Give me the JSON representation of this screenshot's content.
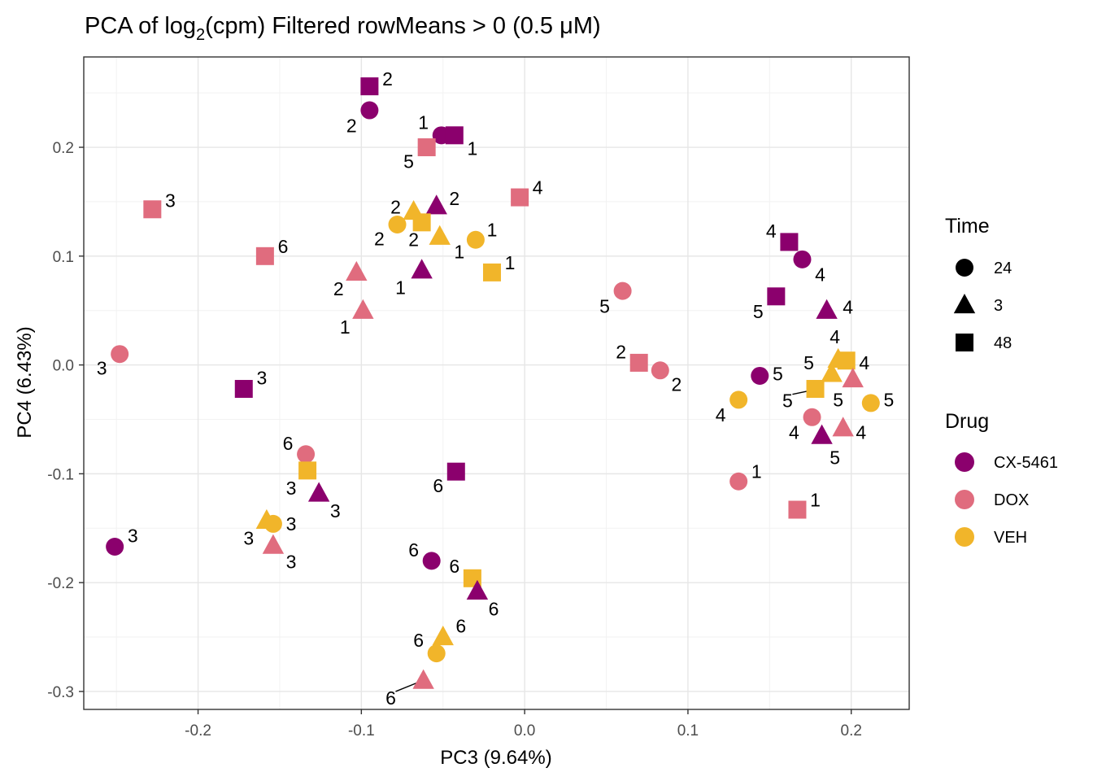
{
  "chart_data": {
    "type": "scatter",
    "title": {
      "prefix": "PCA of log",
      "subscript": "2",
      "suffix": "(cpm) Filtered rowMeans > 0 (0.5 μM)"
    },
    "xlabel": "PC3 (9.64%)",
    "ylabel": "PC4 (6.43%)",
    "xlim": [
      -0.27,
      0.2355
    ],
    "ylim": [
      -0.3165,
      0.283
    ],
    "xticks": [
      -0.2,
      -0.1,
      0.0,
      0.1,
      0.2
    ],
    "xtick_labels": [
      "-0.2",
      "-0.1",
      "0.0",
      "0.1",
      "0.2"
    ],
    "yticks": [
      -0.3,
      -0.2,
      -0.1,
      0.0,
      0.1,
      0.2
    ],
    "ytick_labels": [
      "-0.3",
      "-0.2",
      "-0.1",
      "0.0",
      "0.1",
      "0.2"
    ],
    "grid": true,
    "legend_time": {
      "title": "Time",
      "entries": [
        {
          "label": "24",
          "shape": "circle"
        },
        {
          "label": "3",
          "shape": "triangle"
        },
        {
          "label": "48",
          "shape": "square"
        }
      ]
    },
    "legend_drug": {
      "title": "Drug",
      "entries": [
        {
          "label": "CX-5461",
          "color": "#8B006D"
        },
        {
          "label": "DOX",
          "color": "#E06C7E"
        },
        {
          "label": "VEH",
          "color": "#F1B52A"
        }
      ]
    },
    "colors": {
      "CX-5461": "#8B006D",
      "DOX": "#E06C7E",
      "VEH": "#F1B52A"
    },
    "points": [
      {
        "x": -0.095,
        "y": 0.256,
        "drug": "CX-5461",
        "time": "48",
        "label": "2",
        "ldx": 0.011,
        "ldy": 0.007
      },
      {
        "x": -0.095,
        "y": 0.234,
        "drug": "CX-5461",
        "time": "24",
        "label": "2",
        "ldx": -0.011,
        "ldy": -0.014
      },
      {
        "x": -0.051,
        "y": 0.211,
        "drug": "CX-5461",
        "time": "24",
        "label": "1",
        "ldx": -0.011,
        "ldy": 0.012
      },
      {
        "x": -0.043,
        "y": 0.211,
        "drug": "CX-5461",
        "time": "48",
        "label": "1",
        "ldx": 0.011,
        "ldy": -0.012
      },
      {
        "x": -0.06,
        "y": 0.2,
        "drug": "DOX",
        "time": "48",
        "label": "5",
        "ldx": -0.011,
        "ldy": -0.013
      },
      {
        "x": -0.228,
        "y": 0.143,
        "drug": "DOX",
        "time": "48",
        "label": "3",
        "ldx": 0.011,
        "ldy": 0.008
      },
      {
        "x": -0.003,
        "y": 0.154,
        "drug": "DOX",
        "time": "48",
        "label": "4",
        "ldx": 0.011,
        "ldy": 0.009
      },
      {
        "x": -0.054,
        "y": 0.146,
        "drug": "CX-5461",
        "time": "3",
        "label": "2",
        "ldx": 0.011,
        "ldy": 0.007
      },
      {
        "x": -0.068,
        "y": 0.141,
        "drug": "VEH",
        "time": "3",
        "label": "2",
        "ldx": -0.011,
        "ldy": 0.004
      },
      {
        "x": -0.063,
        "y": 0.131,
        "drug": "VEH",
        "time": "48",
        "label": "2",
        "ldx": -0.005,
        "ldy": -0.016
      },
      {
        "x": -0.078,
        "y": 0.129,
        "drug": "VEH",
        "time": "24",
        "label": "2",
        "ldx": -0.011,
        "ldy": -0.013
      },
      {
        "x": -0.052,
        "y": 0.118,
        "drug": "VEH",
        "time": "3",
        "label": "1",
        "ldx": 0.012,
        "ldy": -0.014
      },
      {
        "x": -0.03,
        "y": 0.115,
        "drug": "VEH",
        "time": "24",
        "label": "1",
        "ldx": 0.01,
        "ldy": 0.009
      },
      {
        "x": -0.02,
        "y": 0.085,
        "drug": "VEH",
        "time": "48",
        "label": "1",
        "ldx": 0.011,
        "ldy": 0.009
      },
      {
        "x": -0.159,
        "y": 0.1,
        "drug": "DOX",
        "time": "48",
        "label": "6",
        "ldx": 0.011,
        "ldy": 0.009
      },
      {
        "x": -0.103,
        "y": 0.085,
        "drug": "DOX",
        "time": "3",
        "label": "2",
        "ldx": -0.011,
        "ldy": -0.015
      },
      {
        "x": -0.063,
        "y": 0.087,
        "drug": "CX-5461",
        "time": "3",
        "label": "1",
        "ldx": -0.013,
        "ldy": -0.016
      },
      {
        "x": -0.099,
        "y": 0.05,
        "drug": "DOX",
        "time": "3",
        "label": "1",
        "ldx": -0.011,
        "ldy": -0.015
      },
      {
        "x": -0.248,
        "y": 0.01,
        "drug": "DOX",
        "time": "24",
        "label": "3",
        "ldx": -0.011,
        "ldy": -0.013
      },
      {
        "x": -0.172,
        "y": -0.022,
        "drug": "CX-5461",
        "time": "48",
        "label": "3",
        "ldx": 0.011,
        "ldy": 0.01
      },
      {
        "x": 0.06,
        "y": 0.068,
        "drug": "DOX",
        "time": "24",
        "label": "5",
        "ldx": -0.011,
        "ldy": -0.014
      },
      {
        "x": 0.07,
        "y": 0.002,
        "drug": "DOX",
        "time": "48",
        "label": "2",
        "ldx": -0.011,
        "ldy": 0.01
      },
      {
        "x": 0.083,
        "y": -0.005,
        "drug": "DOX",
        "time": "24",
        "label": "2",
        "ldx": 0.01,
        "ldy": -0.013
      },
      {
        "x": 0.162,
        "y": 0.113,
        "drug": "CX-5461",
        "time": "48",
        "label": "4",
        "ldx": -0.011,
        "ldy": 0.01
      },
      {
        "x": 0.17,
        "y": 0.097,
        "drug": "CX-5461",
        "time": "24",
        "label": "4",
        "ldx": 0.011,
        "ldy": -0.014
      },
      {
        "x": 0.154,
        "y": 0.063,
        "drug": "CX-5461",
        "time": "48",
        "label": "5",
        "ldx": -0.011,
        "ldy": -0.014
      },
      {
        "x": 0.185,
        "y": 0.05,
        "drug": "CX-5461",
        "time": "3",
        "label": "4",
        "ldx": 0.013,
        "ldy": 0.003
      },
      {
        "x": 0.144,
        "y": -0.01,
        "drug": "CX-5461",
        "time": "24",
        "label": "5",
        "ldx": 0.011,
        "ldy": 0.002
      },
      {
        "x": 0.192,
        "y": 0.005,
        "drug": "VEH",
        "time": "3",
        "label": "4",
        "ldx": -0.002,
        "ldy": 0.021
      },
      {
        "x": 0.197,
        "y": 0.004,
        "drug": "VEH",
        "time": "48",
        "label": "4",
        "ldx": 0.011,
        "ldy": -0.002
      },
      {
        "x": 0.188,
        "y": -0.008,
        "drug": "VEH",
        "time": "3",
        "label": "5",
        "ldx": -0.014,
        "ldy": 0.01
      },
      {
        "x": 0.201,
        "y": -0.013,
        "drug": "DOX",
        "time": "3",
        "label": "5",
        "ldx": -0.009,
        "ldy": -0.019
      },
      {
        "x": 0.178,
        "y": -0.022,
        "drug": "VEH",
        "time": "48",
        "label": "5",
        "ldx": -0.017,
        "ldy": -0.011,
        "leader": true
      },
      {
        "x": 0.131,
        "y": -0.032,
        "drug": "VEH",
        "time": "24",
        "label": "4",
        "ldx": -0.011,
        "ldy": -0.014
      },
      {
        "x": 0.212,
        "y": -0.035,
        "drug": "VEH",
        "time": "24",
        "label": "5",
        "ldx": 0.011,
        "ldy": 0.003
      },
      {
        "x": 0.176,
        "y": -0.048,
        "drug": "DOX",
        "time": "24",
        "label": "4",
        "ldx": -0.011,
        "ldy": -0.014
      },
      {
        "x": 0.195,
        "y": -0.058,
        "drug": "DOX",
        "time": "3",
        "label": "4",
        "ldx": 0.011,
        "ldy": -0.004
      },
      {
        "x": 0.182,
        "y": -0.065,
        "drug": "CX-5461",
        "time": "3",
        "label": "5",
        "ldx": 0.008,
        "ldy": -0.02
      },
      {
        "x": 0.131,
        "y": -0.107,
        "drug": "DOX",
        "time": "24",
        "label": "1",
        "ldx": 0.011,
        "ldy": 0.009
      },
      {
        "x": 0.167,
        "y": -0.133,
        "drug": "DOX",
        "time": "48",
        "label": "1",
        "ldx": 0.011,
        "ldy": 0.009
      },
      {
        "x": -0.042,
        "y": -0.098,
        "drug": "CX-5461",
        "time": "48",
        "label": "6",
        "ldx": -0.011,
        "ldy": -0.013
      },
      {
        "x": -0.134,
        "y": -0.082,
        "drug": "DOX",
        "time": "24",
        "label": "6",
        "ldx": -0.011,
        "ldy": 0.01
      },
      {
        "x": -0.133,
        "y": -0.097,
        "drug": "VEH",
        "time": "48",
        "label": "3",
        "ldx": -0.01,
        "ldy": -0.016
      },
      {
        "x": -0.126,
        "y": -0.118,
        "drug": "CX-5461",
        "time": "3",
        "label": "3",
        "ldx": 0.01,
        "ldy": -0.016
      },
      {
        "x": -0.158,
        "y": -0.143,
        "drug": "VEH",
        "time": "3",
        "label": "3",
        "ldx": -0.011,
        "ldy": -0.016
      },
      {
        "x": -0.154,
        "y": -0.146,
        "drug": "VEH",
        "time": "24",
        "label": "3",
        "ldx": 0.011,
        "ldy": 0.0
      },
      {
        "x": -0.154,
        "y": -0.166,
        "drug": "DOX",
        "time": "3",
        "label": "3",
        "ldx": 0.011,
        "ldy": -0.015
      },
      {
        "x": -0.251,
        "y": -0.167,
        "drug": "CX-5461",
        "time": "24",
        "label": "3",
        "ldx": 0.011,
        "ldy": 0.01
      },
      {
        "x": -0.057,
        "y": -0.18,
        "drug": "CX-5461",
        "time": "24",
        "label": "6",
        "ldx": -0.011,
        "ldy": 0.01
      },
      {
        "x": -0.032,
        "y": -0.196,
        "drug": "VEH",
        "time": "48",
        "label": "6",
        "ldx": -0.011,
        "ldy": 0.011
      },
      {
        "x": -0.029,
        "y": -0.208,
        "drug": "CX-5461",
        "time": "3",
        "label": "6",
        "ldx": 0.01,
        "ldy": -0.016
      },
      {
        "x": -0.05,
        "y": -0.25,
        "drug": "VEH",
        "time": "3",
        "label": "6",
        "ldx": 0.011,
        "ldy": 0.01
      },
      {
        "x": -0.054,
        "y": -0.265,
        "drug": "VEH",
        "time": "24",
        "label": "6",
        "ldx": -0.011,
        "ldy": 0.012
      },
      {
        "x": -0.062,
        "y": -0.29,
        "drug": "DOX",
        "time": "3",
        "label": "6",
        "ldx": -0.02,
        "ldy": -0.016,
        "leader": true
      }
    ]
  }
}
